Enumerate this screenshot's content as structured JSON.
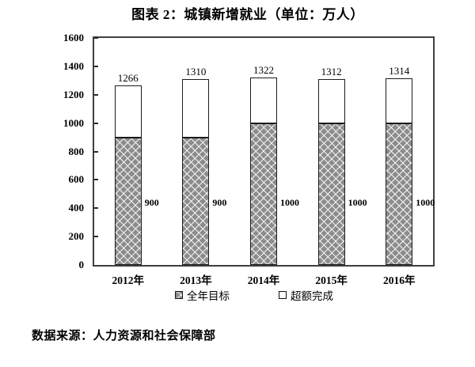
{
  "title": "图表 2：城镇新增就业（单位：万人）",
  "source_note": "数据来源：人力资源和社会保障部",
  "chart_data": {
    "type": "bar",
    "stacked": true,
    "title": "图表 2：城镇新增就业（单位：万人）",
    "unit": "万人",
    "categories": [
      "2012年",
      "2013年",
      "2014年",
      "2015年",
      "2016年"
    ],
    "series": [
      {
        "name": "全年目标",
        "values": [
          900,
          900,
          1000,
          1000,
          1000
        ],
        "swatch": "hatched"
      },
      {
        "name": "超额完成",
        "values": [
          366,
          410,
          322,
          312,
          314
        ],
        "swatch": "white"
      }
    ],
    "totals": [
      1266,
      1310,
      1322,
      1312,
      1314
    ],
    "total_labels": [
      "1266",
      "1310",
      "1322",
      "1312",
      "1314"
    ],
    "target_labels": [
      "900",
      "900",
      "1000",
      "1000",
      "1000"
    ],
    "ylim": [
      0,
      1600
    ],
    "yticks": [
      0,
      200,
      400,
      600,
      800,
      1000,
      1200,
      1400,
      1600
    ],
    "grid": false,
    "legend_position": "bottom",
    "colors": {
      "frame": "#3f3f3f",
      "bar_border": "#1c1c1c",
      "hatch_base": "#8c8c8c",
      "hatch_line": "#f4f4f4",
      "overfill": "#ffffff",
      "text": "#000000"
    }
  }
}
